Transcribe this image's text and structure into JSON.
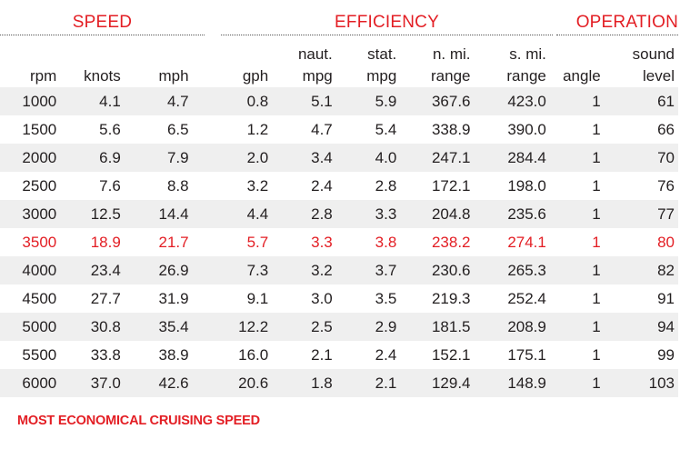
{
  "groups": {
    "speed": "SPEED",
    "efficiency": "EFFICIENCY",
    "operation": "OPERATION"
  },
  "columns": [
    {
      "top": "",
      "bottom": "rpm"
    },
    {
      "top": "",
      "bottom": "knots"
    },
    {
      "top": "",
      "bottom": "mph"
    },
    {
      "top": "",
      "bottom": "gph"
    },
    {
      "top": "naut.",
      "bottom": "mpg"
    },
    {
      "top": "stat.",
      "bottom": "mpg"
    },
    {
      "top": "n. mi.",
      "bottom": "range"
    },
    {
      "top": "s. mi.",
      "bottom": "range"
    },
    {
      "top": "",
      "bottom": "angle"
    },
    {
      "top": "sound",
      "bottom": "level"
    }
  ],
  "rows": [
    [
      "1000",
      "4.1",
      "4.7",
      "0.8",
      "5.1",
      "5.9",
      "367.6",
      "423.0",
      "1",
      "61"
    ],
    [
      "1500",
      "5.6",
      "6.5",
      "1.2",
      "4.7",
      "5.4",
      "338.9",
      "390.0",
      "1",
      "66"
    ],
    [
      "2000",
      "6.9",
      "7.9",
      "2.0",
      "3.4",
      "4.0",
      "247.1",
      "284.4",
      "1",
      "70"
    ],
    [
      "2500",
      "7.6",
      "8.8",
      "3.2",
      "2.4",
      "2.8",
      "172.1",
      "198.0",
      "1",
      "76"
    ],
    [
      "3000",
      "12.5",
      "14.4",
      "4.4",
      "2.8",
      "3.3",
      "204.8",
      "235.6",
      "1",
      "77"
    ],
    [
      "3500",
      "18.9",
      "21.7",
      "5.7",
      "3.3",
      "3.8",
      "238.2",
      "274.1",
      "1",
      "80"
    ],
    [
      "4000",
      "23.4",
      "26.9",
      "7.3",
      "3.2",
      "3.7",
      "230.6",
      "265.3",
      "1",
      "82"
    ],
    [
      "4500",
      "27.7",
      "31.9",
      "9.1",
      "3.0",
      "3.5",
      "219.3",
      "252.4",
      "1",
      "91"
    ],
    [
      "5000",
      "30.8",
      "35.4",
      "12.2",
      "2.5",
      "2.9",
      "181.5",
      "208.9",
      "1",
      "94"
    ],
    [
      "5500",
      "33.8",
      "38.9",
      "16.0",
      "2.1",
      "2.4",
      "152.1",
      "175.1",
      "1",
      "99"
    ],
    [
      "6000",
      "37.0",
      "42.6",
      "20.6",
      "1.8",
      "2.1",
      "129.4",
      "148.9",
      "1",
      "103"
    ]
  ],
  "highlight_row_index": 5,
  "footnote": "MOST ECONOMICAL CRUISING SPEED",
  "colors": {
    "accent": "#e31e24",
    "text": "#231f20",
    "stripe": "#efefef"
  }
}
